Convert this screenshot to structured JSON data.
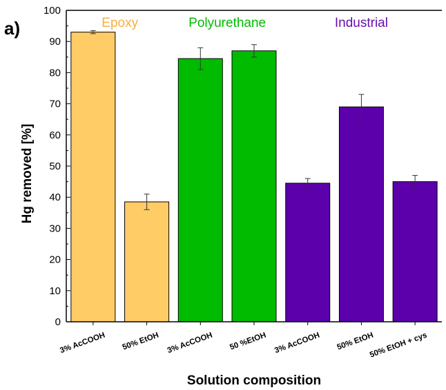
{
  "panel_label": "a)",
  "chart_data": {
    "type": "bar",
    "xlabel": "Solution composition",
    "ylabel": "Hg removed [%]",
    "ylim": [
      0,
      100
    ],
    "yticks": [
      0,
      10,
      20,
      30,
      40,
      50,
      60,
      70,
      80,
      90,
      100
    ],
    "grid": false,
    "categories": [
      "3% AcCOOH",
      "50% EtOH",
      "3% AcCOOH",
      "50 %EtOH",
      "3% AcCOOH",
      "50% EtOH",
      "50% EtOH + cys"
    ],
    "values": [
      93,
      38.5,
      84.5,
      87,
      44.5,
      69,
      45
    ],
    "errors": [
      0.5,
      2.5,
      3.5,
      2,
      1.5,
      4,
      2
    ],
    "groups": [
      {
        "name": "Epoxy",
        "color": "#FFCC66",
        "text_color": "#F5B041",
        "indices": [
          0,
          1
        ]
      },
      {
        "name": "Polyurethane",
        "color": "#00BB00",
        "text_color": "#00BB00",
        "indices": [
          2,
          3
        ]
      },
      {
        "name": "Industrial",
        "color": "#5B00AA",
        "text_color": "#6A0DAD",
        "indices": [
          4,
          5,
          6
        ]
      }
    ]
  }
}
